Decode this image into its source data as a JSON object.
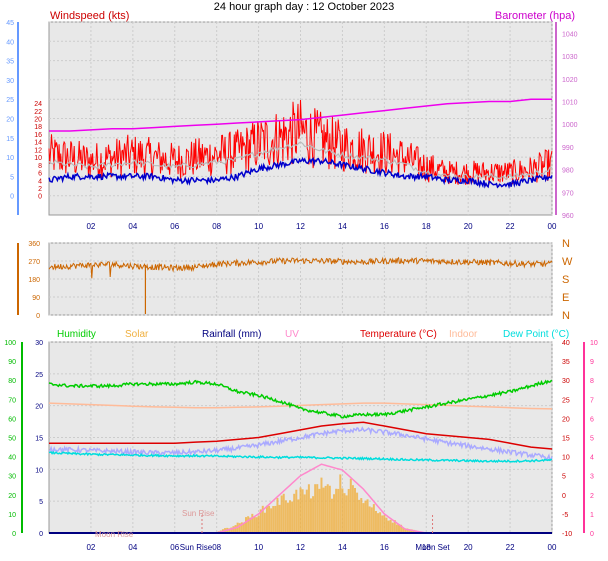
{
  "title": "24 hour graph day : 12 October 2023",
  "colors": {
    "wind": "#ff0000",
    "wind_avg": "#0000cc",
    "baro": "#ee00ee",
    "gust_grey": "#bbbbbb",
    "dir": "#cc6600",
    "humidity": "#00cc00",
    "solar": "#f0b040",
    "rain": "#000080",
    "uv": "#ff88cc",
    "temp": "#dd0000",
    "indoor": "#ffbb99",
    "dewpoint": "#00dddd",
    "feels": "#aaaaff",
    "axis_left": "#6699ff",
    "axis_right": "#cc66cc",
    "axis_hum": "#00bb00",
    "axis_uv": "#ff3399",
    "plotbg": "#e8e8e8"
  },
  "x_ticks": [
    "02",
    "04",
    "06",
    "08",
    "10",
    "12",
    "14",
    "16",
    "18",
    "20",
    "22",
    "00"
  ],
  "x_ticks_bottom": [
    "02",
    "04",
    "06",
    "08",
    "10",
    "12",
    "14",
    "16",
    "18",
    "20",
    "22",
    "00"
  ],
  "events": {
    "sunrise": "Sun Rise",
    "sunset": "Moon Set",
    "moonrise": "Moon Rise",
    "sun_rise_label": "Sun Rise"
  },
  "chart_data": [
    {
      "type": "line",
      "name_left": "Windspeed (kts)",
      "name_right": "Barometer (hpa)",
      "ylim": [
        -5,
        45
      ],
      "yticks": [
        "0",
        "5",
        "10",
        "15",
        "20",
        "25",
        "30",
        "35",
        "40",
        "45"
      ],
      "y2ticks_left": [
        "0",
        "2",
        "4",
        "6",
        "8",
        "10",
        "12",
        "14",
        "16",
        "18",
        "20",
        "22",
        "24"
      ],
      "y2lim": [
        960,
        1045
      ],
      "y2ticks": [
        "960",
        "970",
        "980",
        "990",
        "1000",
        "1010",
        "1020",
        "1030",
        "1040"
      ],
      "hours": [
        0,
        1,
        2,
        3,
        4,
        5,
        6,
        7,
        8,
        9,
        10,
        11,
        12,
        13,
        14,
        15,
        16,
        17,
        18,
        19,
        20,
        21,
        22,
        23,
        24
      ],
      "wind_avg": [
        4,
        5,
        5,
        5,
        5,
        5,
        4,
        4,
        4,
        5,
        7,
        8,
        9,
        9,
        8,
        7,
        6,
        5,
        5,
        4,
        4,
        3,
        3,
        4,
        5
      ],
      "wind_gust": [
        14,
        13,
        12,
        13,
        14,
        13,
        12,
        13,
        14,
        15,
        18,
        20,
        22,
        19,
        17,
        16,
        15,
        13,
        10,
        8,
        8,
        8,
        8,
        9,
        11
      ],
      "barometer": [
        997,
        997,
        997.5,
        998,
        998,
        998.5,
        999,
        999.5,
        1000,
        1000.5,
        1001,
        1001.5,
        1002,
        1003,
        1004,
        1005,
        1006,
        1007,
        1008,
        1009,
        1009.5,
        1010,
        1010,
        1011,
        1011
      ]
    },
    {
      "type": "line",
      "name": "Wind direction",
      "ylim": [
        0,
        360
      ],
      "yticks": [
        "0",
        "90",
        "180",
        "270",
        "360"
      ],
      "y2ticks": [
        "N",
        "W",
        "S",
        "E",
        "N"
      ],
      "direction": [
        240,
        245,
        250,
        255,
        245,
        240,
        235,
        240,
        255,
        260,
        265,
        270,
        272,
        270,
        268,
        265,
        270,
        272,
        270,
        268,
        265,
        262,
        258,
        255,
        255
      ]
    },
    {
      "type": "line",
      "labels": [
        "Humidity",
        "Solar",
        "Rainfall (mm)",
        "UV",
        "Temperature (°C)",
        "Indoor",
        "Dew Point (°C)"
      ],
      "yticks_hum": [
        "0",
        "10",
        "20",
        "30",
        "40",
        "50",
        "60",
        "70",
        "80",
        "90",
        "100"
      ],
      "yticks_rain": [
        "0",
        "5",
        "10",
        "15",
        "20",
        "25",
        "30"
      ],
      "yticks_temp": [
        "-10",
        "-5",
        "0",
        "5",
        "10",
        "15",
        "20",
        "25",
        "30",
        "35",
        "40"
      ],
      "yticks_uv": [
        "0",
        "1",
        "2",
        "3",
        "4",
        "5",
        "6",
        "7",
        "8",
        "9",
        "10"
      ],
      "humidity": [
        78,
        77,
        77,
        77,
        78,
        78,
        78,
        79,
        78,
        74,
        72,
        69,
        65,
        63,
        61,
        62,
        62,
        64,
        66,
        68,
        70,
        72,
        74,
        77,
        80
      ],
      "temperature": [
        13.5,
        13.5,
        13.5,
        13.5,
        13.5,
        13.5,
        13.5,
        13.8,
        14,
        14.5,
        15,
        16,
        17,
        18,
        18.6,
        19,
        18,
        17,
        16,
        15.5,
        15,
        14.5,
        13.5,
        12.5,
        12
      ],
      "indoor": [
        24,
        23.8,
        23.6,
        23.4,
        23.2,
        23,
        22.9,
        22.8,
        22.8,
        22.9,
        23,
        23.2,
        23.4,
        23.6,
        23.8,
        24,
        24,
        23.8,
        23.6,
        23.4,
        23.2,
        23,
        22.8,
        22.6,
        22.5
      ],
      "dewpoint": [
        11,
        10.8,
        10.6,
        10.5,
        10.4,
        10.3,
        10.2,
        10.2,
        10.1,
        10,
        9.9,
        9.8,
        9.8,
        9.7,
        9.6,
        9.5,
        9.4,
        9.2,
        9.1,
        9,
        8.9,
        8.8,
        8.8,
        8.9,
        9.1
      ],
      "feels": [
        12,
        11.8,
        11.6,
        11.4,
        11.2,
        11,
        11,
        11.2,
        11.6,
        12.2,
        13,
        14,
        15,
        16,
        16.8,
        17,
        16.4,
        15.6,
        14.6,
        13.6,
        12.8,
        12,
        11.2,
        10.4,
        9.6
      ],
      "solar": [
        0,
        0,
        0,
        0,
        0,
        0,
        0,
        0,
        0.2,
        1.5,
        3.5,
        5.5,
        6.8,
        7.2,
        6.8,
        5.5,
        3,
        0.8,
        0,
        0,
        0,
        0,
        0,
        0,
        0
      ],
      "uv": [
        0,
        0,
        0,
        0,
        0,
        0,
        0,
        0,
        0,
        0.3,
        1,
        2,
        3,
        3.6,
        3.3,
        2.3,
        1,
        0.2,
        0,
        0,
        0,
        0,
        0,
        0,
        0
      ],
      "rainfall": [
        0,
        0,
        0,
        0,
        0,
        0,
        0,
        0,
        0,
        0,
        0,
        0,
        0,
        0,
        0,
        0,
        0,
        0,
        0,
        0,
        0,
        0,
        0,
        0,
        0
      ]
    }
  ]
}
